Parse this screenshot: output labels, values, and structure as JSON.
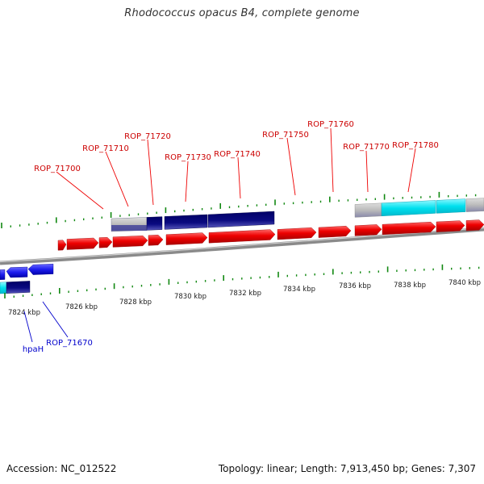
{
  "title": "Rhodococcus opacus B4, complete genome",
  "footer": {
    "accession": "Accession: NC_012522",
    "topology": "Topology: linear; Length: 7,913,450 bp; Genes: 7,307"
  },
  "scale": {
    "unit": "kbp",
    "tick_labels": [
      "7824 kbp",
      "7826 kbp",
      "7828 kbp",
      "7830 kbp",
      "7832 kbp",
      "7834 kbp",
      "7836 kbp",
      "7838 kbp",
      "7840 kbp"
    ]
  },
  "gene_labels_red": [
    "ROP_71700",
    "ROP_71710",
    "ROP_71720",
    "ROP_71730",
    "ROP_71740",
    "ROP_71750",
    "ROP_71760",
    "ROP_71770",
    "ROP_71780"
  ],
  "gene_labels_blue": [
    "hpaH",
    "ROP_71670"
  ],
  "colors": {
    "forward_gene": "#ee0000",
    "reverse_gene": "#2222ee",
    "navy_feature": "#0a0a7a",
    "cyan_feature": "#00e8f0",
    "grey_feature": "#bbbbbb",
    "tick": "#118811",
    "backbone": "#8a8a8a",
    "label_red": "#cc0000",
    "label_blue": "#0000cc"
  }
}
